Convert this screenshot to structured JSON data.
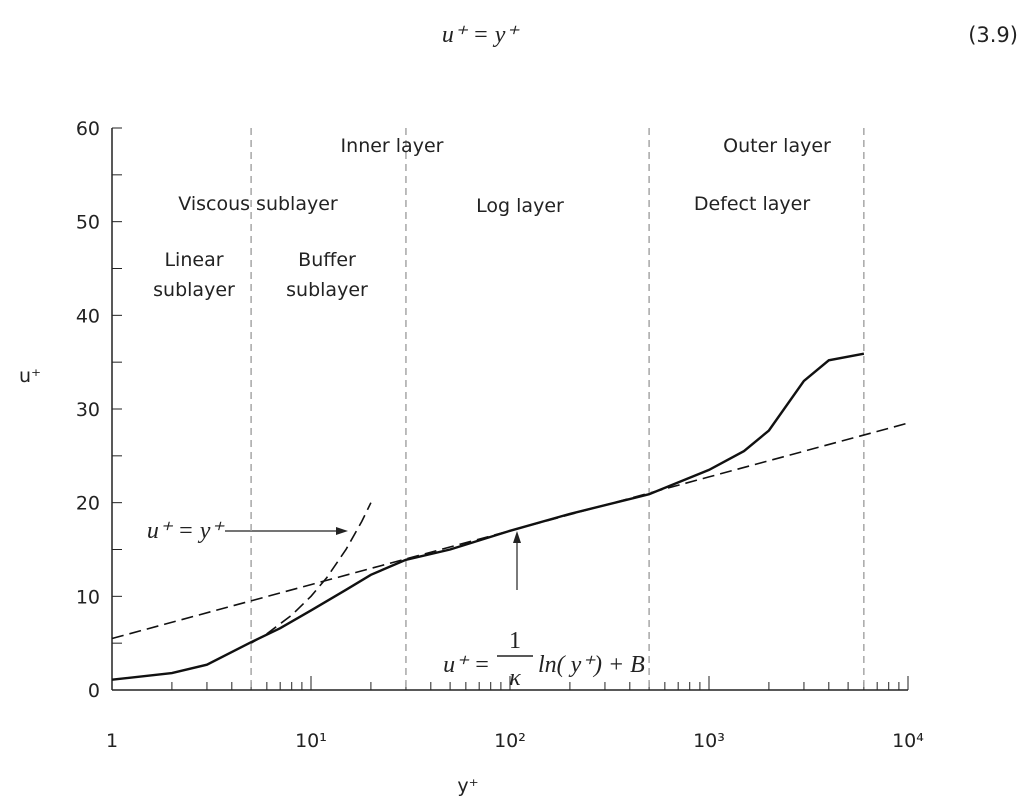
{
  "equation": {
    "text": "u⁺ = y⁺",
    "number": "(3.9)"
  },
  "chart_data": {
    "type": "line",
    "xscale": "log",
    "x_label": "y⁺",
    "y_label": "u⁺",
    "xlim": [
      1,
      10000
    ],
    "xticks": [
      1,
      {
        "value": 10,
        "label": "10¹"
      },
      {
        "value": 100,
        "label": "10²"
      },
      {
        "value": 1000,
        "label": "10³"
      },
      {
        "value": 10000,
        "label": "10⁴"
      }
    ],
    "ylim": [
      0,
      60
    ],
    "yticks": [
      0,
      10,
      20,
      30,
      40,
      50,
      60
    ],
    "vlines": [
      5,
      30,
      500,
      6000
    ],
    "vline_color": "#999999",
    "series": [
      {
        "color": "#111111",
        "style": "solid",
        "x": [
          1,
          2,
          3,
          5,
          7,
          10,
          15,
          20,
          30,
          50,
          100,
          200,
          500,
          1000,
          1500,
          2000,
          3000,
          4000,
          6000
        ],
        "values": [
          1.1,
          1.8,
          2.7,
          5.1,
          6.6,
          8.5,
          10.7,
          12.3,
          13.9,
          15,
          17,
          18.8,
          20.9,
          23.5,
          25.5,
          27.7,
          33,
          35.2,
          35.9
        ]
      },
      {
        "color": "#111111",
        "style": "dashed",
        "x": [
          5,
          6,
          8,
          10,
          12,
          15,
          18,
          20
        ],
        "values": [
          5,
          6,
          8,
          10,
          12,
          15,
          18,
          20
        ]
      },
      {
        "color": "#111111",
        "style": "dashed",
        "x": [
          1,
          10,
          100,
          1000,
          10000
        ],
        "values": [
          5.5,
          11.25,
          17,
          22.75,
          28.5
        ]
      }
    ],
    "annotations": {
      "inner_layer": "Inner layer",
      "outer_layer": "Outer layer",
      "viscous_sublayer": "Viscous sublayer",
      "log_layer": "Log layer",
      "defect_layer": "Defect layer",
      "linear_sublayer": [
        "Linear",
        "sublayer"
      ],
      "buffer_sublayer": [
        "Buffer",
        "sublayer"
      ],
      "linear_law": "u⁺ = y⁺",
      "log_law": {
        "lhs": "u⁺ =",
        "numerator": "1",
        "denominator": "κ",
        "rhs": "ln( y⁺) + B"
      }
    }
  }
}
